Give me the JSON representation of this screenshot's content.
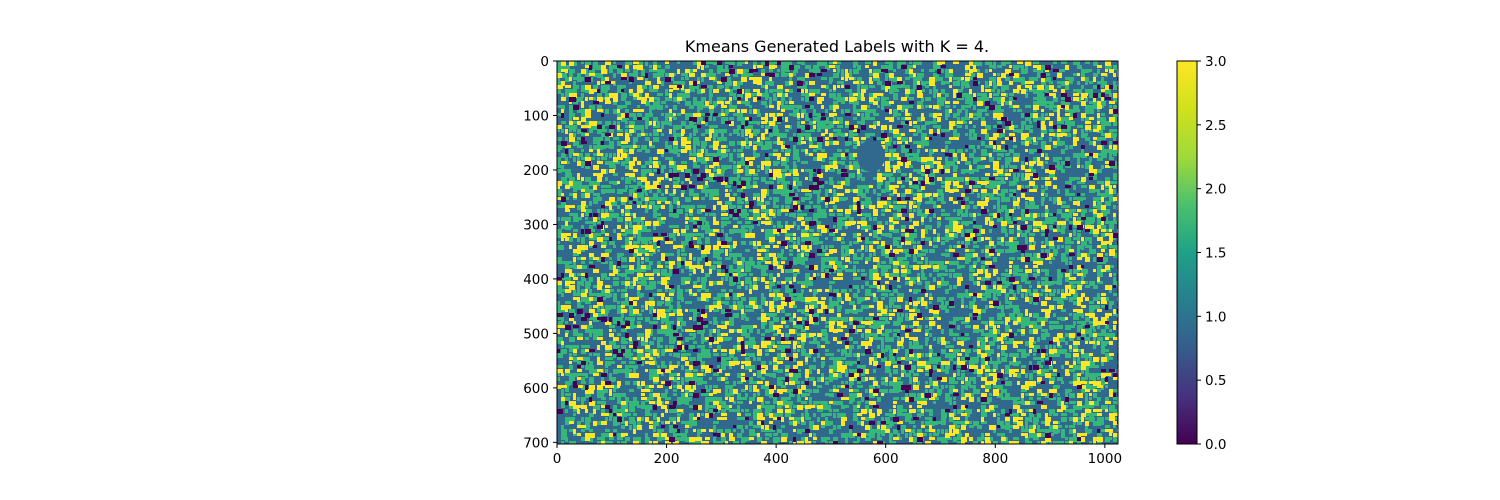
{
  "chart_data": [
    {
      "type": "heatmap",
      "title": "Kmeans Generated Labels with K = 4.",
      "xlabel": "",
      "ylabel": "",
      "image_shape": [
        703,
        1024
      ],
      "xlim": [
        0,
        1024
      ],
      "ylim": [
        703,
        0
      ],
      "x_ticks": [
        0,
        200,
        400,
        600,
        800,
        1000
      ],
      "y_ticks": [
        0,
        100,
        200,
        300,
        400,
        500,
        600,
        700
      ],
      "labels": [
        0,
        1,
        2,
        3
      ],
      "label_fractions": {
        "0": 0.04,
        "1": 0.42,
        "2": 0.37,
        "3": 0.17
      },
      "grid": false,
      "colorbar": {
        "cmap": "viridis",
        "range": [
          0.0,
          3.0
        ],
        "ticks": [
          "0.0",
          "0.5",
          "1.0",
          "1.5",
          "2.0",
          "2.5",
          "3.0"
        ],
        "label_colors": {
          "0": "#440154",
          "1": "#31688e",
          "2": "#35b779",
          "3": "#fde725"
        }
      }
    }
  ]
}
